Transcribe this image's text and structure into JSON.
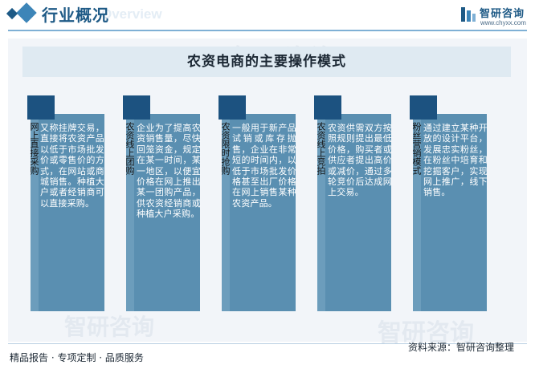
{
  "header": {
    "title": "行业概况",
    "ghost_text": "Overview"
  },
  "brand": {
    "name": "智研咨询",
    "url": "www.chyxx.com",
    "watermark": "智研咨询"
  },
  "main": {
    "title": "农资电商的主要操作模式",
    "cards": [
      {
        "label": "网上直接采购",
        "text": "又称挂牌交易，直接将农资产品以低于市场批发价或零售价的方式，在网站或商城销售。种植大户或者经销商可以直接采购。"
      },
      {
        "label": "农资线上团购",
        "text": "企业为了提高农资销售量，尽快回笼资金，规定在某一时间，某一地区，以便宜价格在网上推出某一团购产品，供农资经销商或种植大户采购。"
      },
      {
        "label": "农资限时抢购",
        "text": "一般用于新产品试销或库存抛售，企业在非常短的时间内，以低于市场批发价格甚至出厂价格在网上销售某种农资产品。"
      },
      {
        "label": "农资线上竞拍",
        "text": "农资供需双方按照规则提出最低价格，购买者或供应者提出高价或减价，通过多轮竞价后达成网上交易。"
      },
      {
        "label": "粉丝营销模式",
        "text": "通过建立某种开放的设计平台，发展忠实粉丝，在粉丝中培育和挖掘客户，实现网上推广，线下销售。"
      }
    ]
  },
  "footer": {
    "services": "精品报告 · 专项定制 · 品质服务",
    "source": "资料来源：智研咨询整理"
  },
  "colors": {
    "accent_dark": "#1c5280",
    "card": "#5a8fb1",
    "banner": "#dfeaf2"
  }
}
